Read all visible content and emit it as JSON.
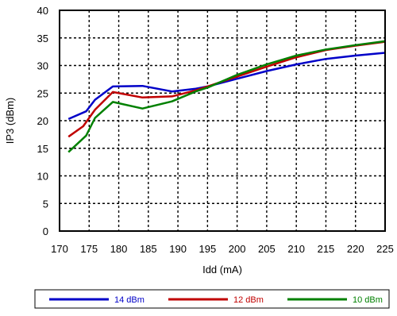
{
  "chart_data": {
    "type": "line",
    "xlabel": "Idd (mA)",
    "ylabel": "IP3 (dBm)",
    "xlim": [
      170,
      225
    ],
    "ylim": [
      0,
      40
    ],
    "xticks": [
      170,
      175,
      180,
      185,
      190,
      195,
      200,
      205,
      210,
      215,
      220,
      225
    ],
    "yticks": [
      0,
      5,
      10,
      15,
      20,
      25,
      30,
      35,
      40
    ],
    "grid": true,
    "legend_position": "bottom",
    "series": [
      {
        "name": "14 dBm",
        "color": "#0000c8",
        "x": [
          171.5,
          174.5,
          176,
          179,
          184,
          189,
          193,
          195,
          200,
          205,
          210,
          215,
          220,
          225
        ],
        "y": [
          20.3,
          21.7,
          23.8,
          26.2,
          26.3,
          25.3,
          25.8,
          26.2,
          27.6,
          29.0,
          30.2,
          31.2,
          31.8,
          32.3
        ]
      },
      {
        "name": "12 dBm",
        "color": "#c00000",
        "x": [
          171.5,
          174,
          176,
          179,
          184,
          189,
          193,
          195,
          200,
          205,
          210,
          215,
          220,
          225
        ],
        "y": [
          17.1,
          19.0,
          22.0,
          25.2,
          24.2,
          24.4,
          25.5,
          26.2,
          28.0,
          29.8,
          31.5,
          32.8,
          33.6,
          34.3
        ]
      },
      {
        "name": "10 dBm",
        "color": "#008000",
        "x": [
          171.5,
          174.5,
          176,
          179,
          184,
          189,
          193,
          195,
          200,
          205,
          210,
          215,
          220,
          225
        ],
        "y": [
          14.3,
          17.3,
          20.5,
          23.4,
          22.2,
          23.5,
          25.3,
          26.0,
          28.3,
          30.2,
          31.8,
          32.9,
          33.7,
          34.4
        ]
      }
    ]
  }
}
